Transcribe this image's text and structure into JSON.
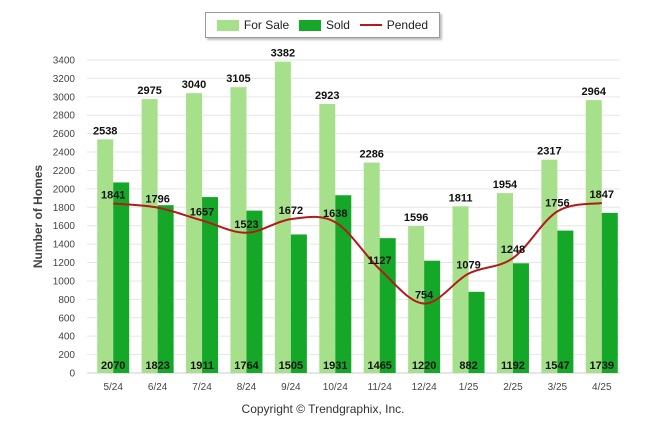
{
  "legend": {
    "for_sale": "For Sale",
    "sold": "Sold",
    "pended": "Pended"
  },
  "copyright": "Copyright © Trendgraphix, Inc.",
  "colors": {
    "for_sale": "#a6e08a",
    "sold": "#15a828",
    "pended": "#b31b1b",
    "grid": "#e6e6e6",
    "axis_text": "#444444"
  },
  "chart_data": {
    "type": "bar",
    "ylabel": "Number of Homes",
    "ylim": [
      0,
      3400
    ],
    "yticks": [
      0,
      200,
      400,
      600,
      800,
      1000,
      1200,
      1400,
      1600,
      1800,
      2000,
      2200,
      2400,
      2600,
      2800,
      3000,
      3200,
      3400
    ],
    "grid": true,
    "legend_position": "top-center",
    "categories": [
      "5/24",
      "6/24",
      "7/24",
      "8/24",
      "9/24",
      "10/24",
      "11/24",
      "12/24",
      "1/25",
      "2/25",
      "3/25",
      "4/25"
    ],
    "series": [
      {
        "name": "For Sale",
        "kind": "bar",
        "values": [
          2538,
          2975,
          3040,
          3105,
          3382,
          2923,
          2286,
          1596,
          1811,
          1954,
          2317,
          2964
        ]
      },
      {
        "name": "Sold",
        "kind": "bar",
        "values": [
          2070,
          1823,
          1911,
          1764,
          1505,
          1931,
          1465,
          1220,
          882,
          1192,
          1547,
          1739
        ]
      },
      {
        "name": "Pended",
        "kind": "line",
        "values": [
          1841,
          1796,
          1657,
          1523,
          1672,
          1638,
          1127,
          754,
          1079,
          1248,
          1756,
          1847
        ]
      }
    ]
  }
}
